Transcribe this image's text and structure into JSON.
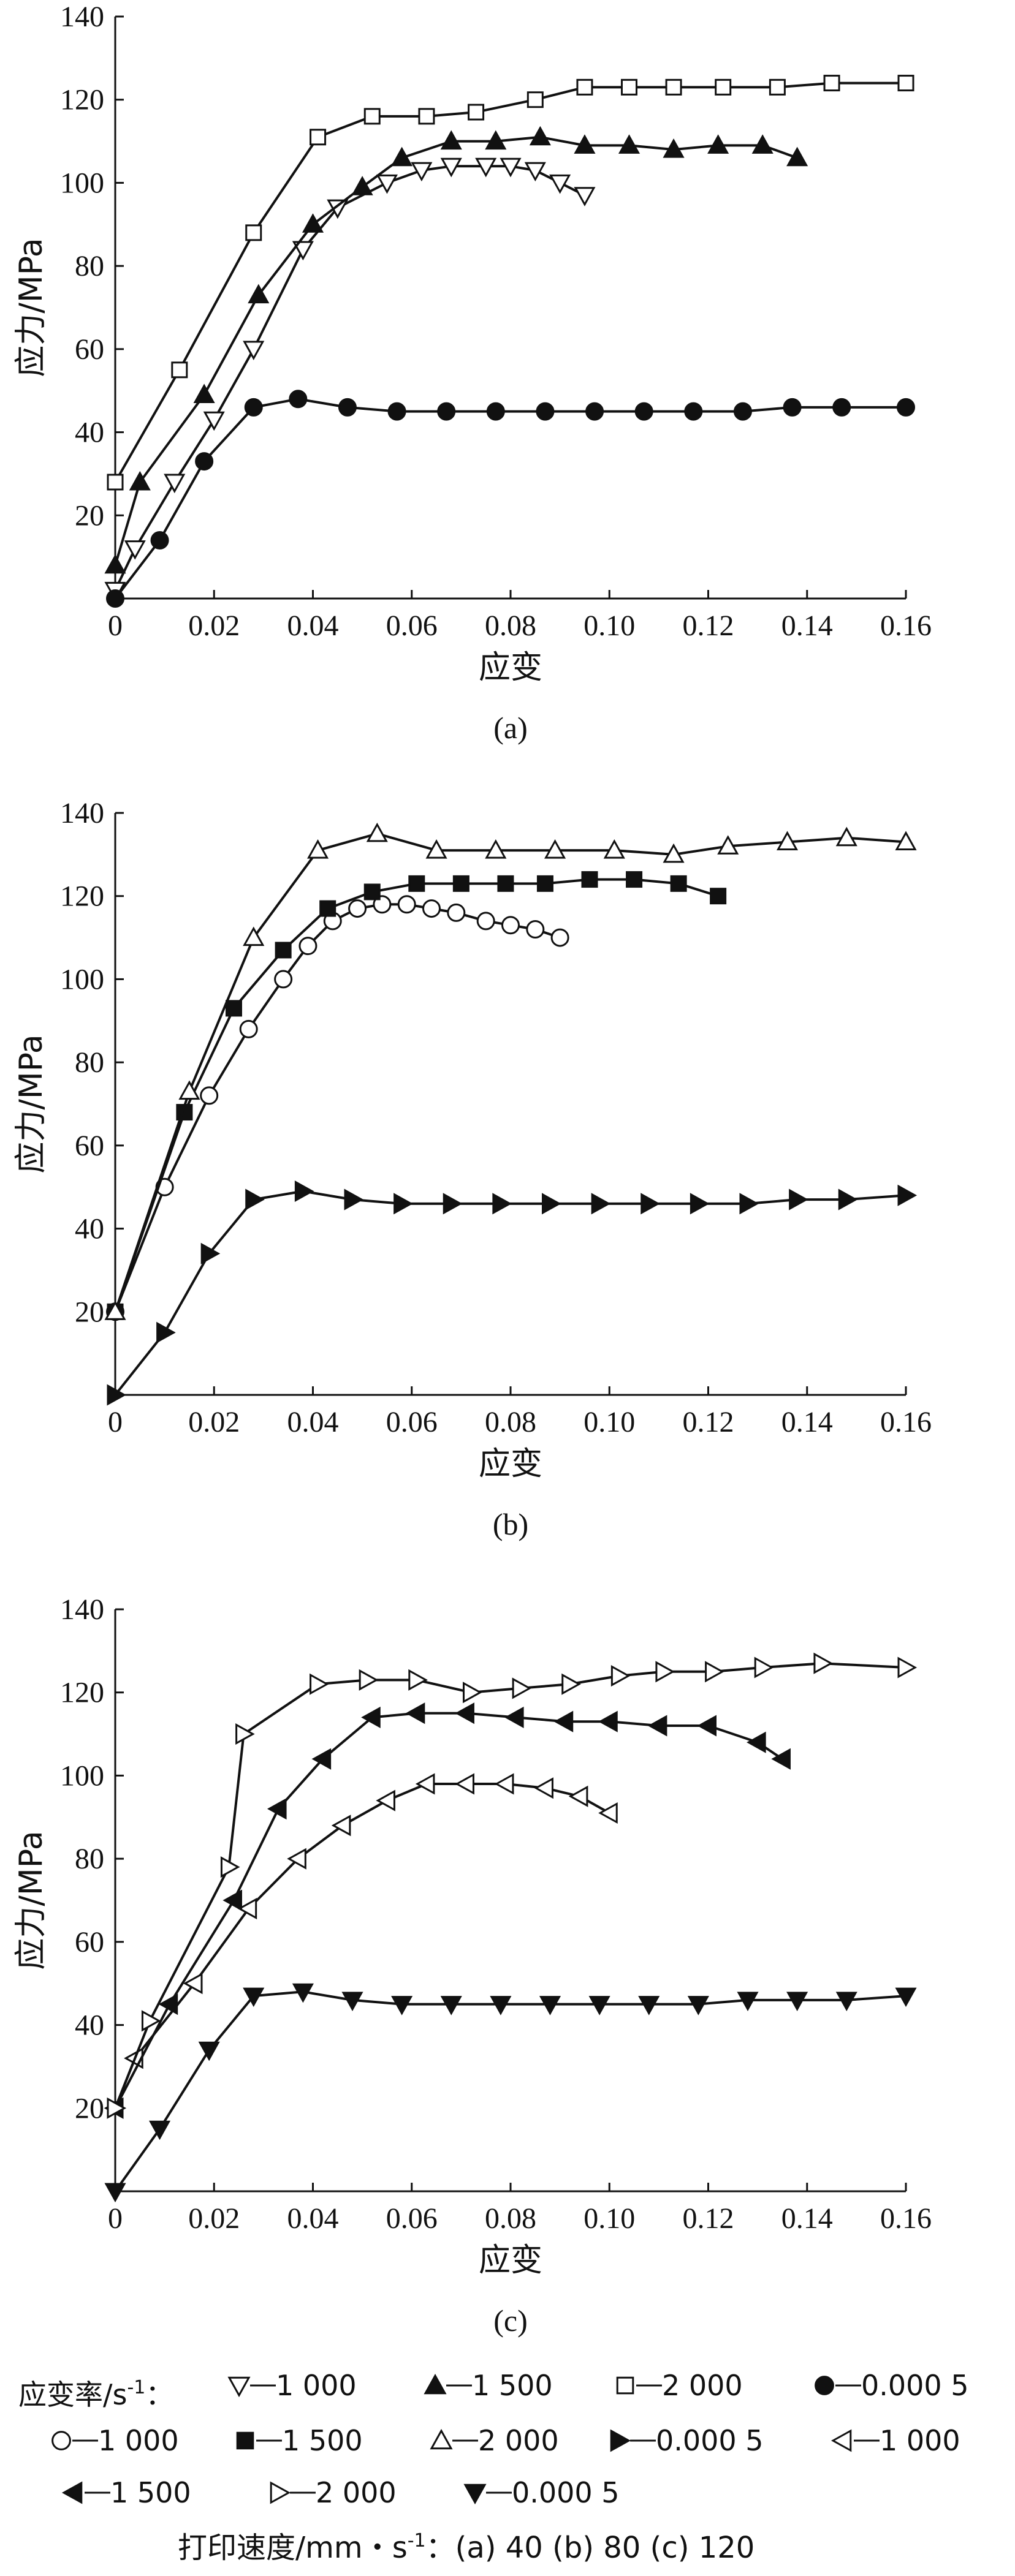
{
  "chart_data": [
    {
      "type": "line",
      "panel_label": "(a)",
      "xlabel": "应变",
      "ylabel": "应力/MPa",
      "xlim": [
        0,
        0.16
      ],
      "ylim": [
        0,
        140
      ],
      "x_ticks": [
        "0",
        "0.02",
        "0.04",
        "0.06",
        "0.08",
        "0.10",
        "0.12",
        "0.14",
        "0.16"
      ],
      "y_ticks": [
        "20",
        "40",
        "60",
        "80",
        "100",
        "120",
        "140"
      ],
      "series": [
        {
          "name": "1 000",
          "marker": "triangle-down-open",
          "x": [
            0,
            0.004,
            0.012,
            0.02,
            0.028,
            0.038,
            0.045,
            0.055,
            0.062,
            0.068,
            0.075,
            0.08,
            0.085,
            0.09,
            0.095
          ],
          "y": [
            2,
            12,
            28,
            43,
            60,
            84,
            94,
            100,
            103,
            104,
            104,
            104,
            103,
            100,
            97
          ]
        },
        {
          "name": "1 500",
          "marker": "triangle-up-filled",
          "x": [
            0,
            0.005,
            0.018,
            0.029,
            0.04,
            0.05,
            0.058,
            0.068,
            0.077,
            0.086,
            0.095,
            0.104,
            0.113,
            0.122,
            0.131,
            0.138
          ],
          "y": [
            8,
            28,
            49,
            73,
            90,
            99,
            106,
            110,
            110,
            111,
            109,
            109,
            108,
            109,
            109,
            106
          ]
        },
        {
          "name": "2 000",
          "marker": "square-open",
          "x": [
            0,
            0.013,
            0.028,
            0.041,
            0.052,
            0.063,
            0.073,
            0.085,
            0.095,
            0.104,
            0.113,
            0.123,
            0.134,
            0.145,
            0.16
          ],
          "y": [
            28,
            55,
            88,
            111,
            116,
            116,
            117,
            120,
            123,
            123,
            123,
            123,
            123,
            124,
            124
          ]
        },
        {
          "name": "0.000 5",
          "marker": "circle-filled",
          "x": [
            0,
            0.009,
            0.018,
            0.028,
            0.037,
            0.047,
            0.057,
            0.067,
            0.077,
            0.087,
            0.097,
            0.107,
            0.117,
            0.127,
            0.137,
            0.147,
            0.16
          ],
          "y": [
            0,
            14,
            33,
            46,
            48,
            46,
            45,
            45,
            45,
            45,
            45,
            45,
            45,
            45,
            46,
            46,
            46
          ]
        }
      ]
    },
    {
      "type": "line",
      "panel_label": "(b)",
      "xlabel": "应变",
      "ylabel": "应力/MPa",
      "xlim": [
        0,
        0.16
      ],
      "ylim": [
        0,
        140
      ],
      "x_ticks": [
        "0",
        "0.02",
        "0.04",
        "0.06",
        "0.08",
        "0.10",
        "0.12",
        "0.14",
        "0.16"
      ],
      "y_ticks": [
        "20",
        "40",
        "60",
        "80",
        "100",
        "120",
        "140"
      ],
      "series": [
        {
          "name": "1 000",
          "marker": "circle-open",
          "x": [
            0,
            0.01,
            0.019,
            0.027,
            0.034,
            0.039,
            0.044,
            0.049,
            0.054,
            0.059,
            0.064,
            0.069,
            0.075,
            0.08,
            0.085,
            0.09
          ],
          "y": [
            20,
            50,
            72,
            88,
            100,
            108,
            114,
            117,
            118,
            118,
            117,
            116,
            114,
            113,
            112,
            110
          ]
        },
        {
          "name": "1 500",
          "marker": "square-filled",
          "x": [
            0,
            0.014,
            0.024,
            0.034,
            0.043,
            0.052,
            0.061,
            0.07,
            0.079,
            0.087,
            0.096,
            0.105,
            0.114,
            0.122
          ],
          "y": [
            20,
            68,
            93,
            107,
            117,
            121,
            123,
            123,
            123,
            123,
            124,
            124,
            123,
            120
          ]
        },
        {
          "name": "2 000",
          "marker": "triangle-up-open",
          "x": [
            0,
            0.015,
            0.028,
            0.041,
            0.053,
            0.065,
            0.077,
            0.089,
            0.101,
            0.113,
            0.124,
            0.136,
            0.148,
            0.16
          ],
          "y": [
            20,
            73,
            110,
            131,
            135,
            131,
            131,
            131,
            131,
            130,
            132,
            133,
            134,
            133
          ]
        },
        {
          "name": "0.000 5",
          "marker": "triangle-right-filled",
          "x": [
            0,
            0.01,
            0.019,
            0.028,
            0.038,
            0.048,
            0.058,
            0.068,
            0.078,
            0.088,
            0.098,
            0.108,
            0.118,
            0.128,
            0.138,
            0.148,
            0.16
          ],
          "y": [
            0,
            15,
            34,
            47,
            49,
            47,
            46,
            46,
            46,
            46,
            46,
            46,
            46,
            46,
            47,
            47,
            48
          ]
        }
      ]
    },
    {
      "type": "line",
      "panel_label": "(c)",
      "xlabel": "应变",
      "ylabel": "应力/MPa",
      "xlim": [
        0,
        0.16
      ],
      "ylim": [
        0,
        140
      ],
      "x_ticks": [
        "0",
        "0.02",
        "0.04",
        "0.06",
        "0.08",
        "0.10",
        "0.12",
        "0.14",
        "0.16"
      ],
      "y_ticks": [
        "20",
        "40",
        "60",
        "80",
        "100",
        "120",
        "140"
      ],
      "series": [
        {
          "name": "1 000",
          "marker": "triangle-left-open",
          "x": [
            0,
            0.004,
            0.016,
            0.027,
            0.037,
            0.046,
            0.055,
            0.063,
            0.071,
            0.079,
            0.087,
            0.094,
            0.1
          ],
          "y": [
            20,
            32,
            50,
            68,
            80,
            88,
            94,
            98,
            98,
            98,
            97,
            95,
            91
          ]
        },
        {
          "name": "1 500",
          "marker": "triangle-left-filled",
          "x": [
            0,
            0.011,
            0.024,
            0.033,
            0.042,
            0.052,
            0.061,
            0.071,
            0.081,
            0.091,
            0.1,
            0.11,
            0.12,
            0.13,
            0.135
          ],
          "y": [
            20,
            45,
            70,
            92,
            104,
            114,
            115,
            115,
            114,
            113,
            113,
            112,
            112,
            108,
            104
          ]
        },
        {
          "name": "2 000",
          "marker": "triangle-right-open",
          "x": [
            0,
            0.007,
            0.023,
            0.026,
            0.041,
            0.051,
            0.061,
            0.072,
            0.082,
            0.092,
            0.102,
            0.111,
            0.121,
            0.131,
            0.143,
            0.16
          ],
          "y": [
            20,
            41,
            78,
            110,
            122,
            123,
            123,
            120,
            121,
            122,
            124,
            125,
            125,
            126,
            127,
            126
          ]
        },
        {
          "name": "0.000 5",
          "marker": "triangle-down-filled",
          "x": [
            0,
            0.009,
            0.019,
            0.028,
            0.038,
            0.048,
            0.058,
            0.068,
            0.078,
            0.088,
            0.098,
            0.108,
            0.118,
            0.128,
            0.138,
            0.148,
            0.16
          ],
          "y": [
            0,
            15,
            34,
            47,
            48,
            46,
            45,
            45,
            45,
            45,
            45,
            45,
            45,
            46,
            46,
            46,
            47
          ]
        }
      ]
    }
  ],
  "legend": {
    "title": "应变率/s",
    "title_sup": "-1",
    "title_colon": "：",
    "items": [
      {
        "label": "1 000",
        "marker": "triangle-down-open"
      },
      {
        "label": "1 500",
        "marker": "triangle-up-filled"
      },
      {
        "label": "2 000",
        "marker": "square-open"
      },
      {
        "label": "0.000 5",
        "marker": "circle-filled"
      },
      {
        "label": "1 000",
        "marker": "circle-open"
      },
      {
        "label": "1 500",
        "marker": "square-filled"
      },
      {
        "label": "2 000",
        "marker": "triangle-up-open"
      },
      {
        "label": "0.000 5",
        "marker": "triangle-right-filled"
      },
      {
        "label": "1 000",
        "marker": "triangle-left-open"
      },
      {
        "label": "1 500",
        "marker": "triangle-left-filled"
      },
      {
        "label": "2 000",
        "marker": "triangle-right-open"
      },
      {
        "label": "0.000 5",
        "marker": "triangle-down-filled"
      }
    ]
  },
  "footer": {
    "prefix": "打印速度/mm・s",
    "sup": "-1",
    "rest": "：(a) 40    (b) 80    (c) 120"
  }
}
